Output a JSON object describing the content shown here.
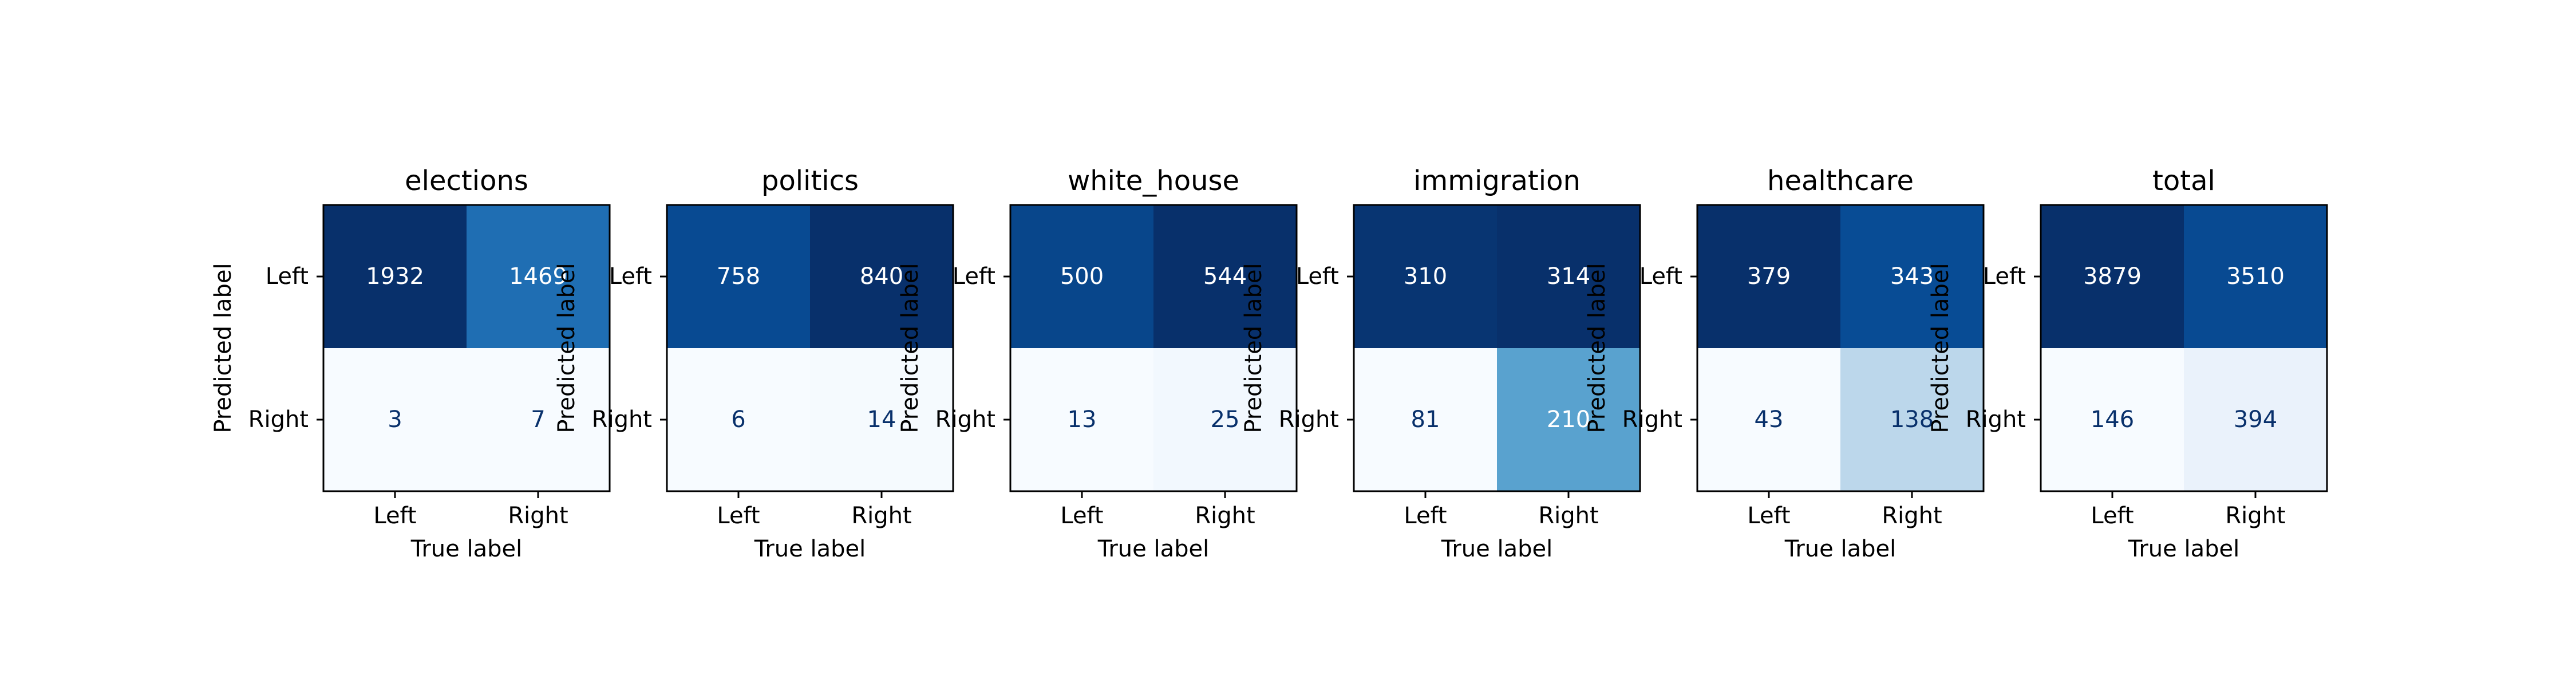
{
  "chart_data": [
    {
      "type": "heatmap",
      "title": "elections",
      "xlabel": "True label",
      "ylabel": "Predicted label",
      "x_ticks": [
        "Left",
        "Right"
      ],
      "y_ticks": [
        "Left",
        "Right"
      ],
      "colormap": "Blues",
      "values": [
        [
          1932,
          1469
        ],
        [
          3,
          7
        ]
      ]
    },
    {
      "type": "heatmap",
      "title": "politics",
      "xlabel": "True label",
      "ylabel": "Predicted label",
      "x_ticks": [
        "Left",
        "Right"
      ],
      "y_ticks": [
        "Left",
        "Right"
      ],
      "colormap": "Blues",
      "values": [
        [
          758,
          840
        ],
        [
          6,
          14
        ]
      ]
    },
    {
      "type": "heatmap",
      "title": "white_house",
      "xlabel": "True label",
      "ylabel": "Predicted label",
      "x_ticks": [
        "Left",
        "Right"
      ],
      "y_ticks": [
        "Left",
        "Right"
      ],
      "colormap": "Blues",
      "values": [
        [
          500,
          544
        ],
        [
          13,
          25
        ]
      ]
    },
    {
      "type": "heatmap",
      "title": "immigration",
      "xlabel": "True label",
      "ylabel": "Predicted label",
      "x_ticks": [
        "Left",
        "Right"
      ],
      "y_ticks": [
        "Left",
        "Right"
      ],
      "colormap": "Blues",
      "values": [
        [
          310,
          314
        ],
        [
          81,
          210
        ]
      ]
    },
    {
      "type": "heatmap",
      "title": "healthcare",
      "xlabel": "True label",
      "ylabel": "Predicted label",
      "x_ticks": [
        "Left",
        "Right"
      ],
      "y_ticks": [
        "Left",
        "Right"
      ],
      "colormap": "Blues",
      "values": [
        [
          379,
          343
        ],
        [
          43,
          138
        ]
      ]
    },
    {
      "type": "heatmap",
      "title": "total",
      "xlabel": "True label",
      "ylabel": "Predicted label",
      "x_ticks": [
        "Left",
        "Right"
      ],
      "y_ticks": [
        "Left",
        "Right"
      ],
      "colormap": "Blues",
      "values": [
        [
          3879,
          3510
        ],
        [
          146,
          394
        ]
      ]
    }
  ],
  "colors": {
    "text_on_dark": "#ffffff",
    "text_on_light": "#08306b",
    "frame": "#000000"
  }
}
